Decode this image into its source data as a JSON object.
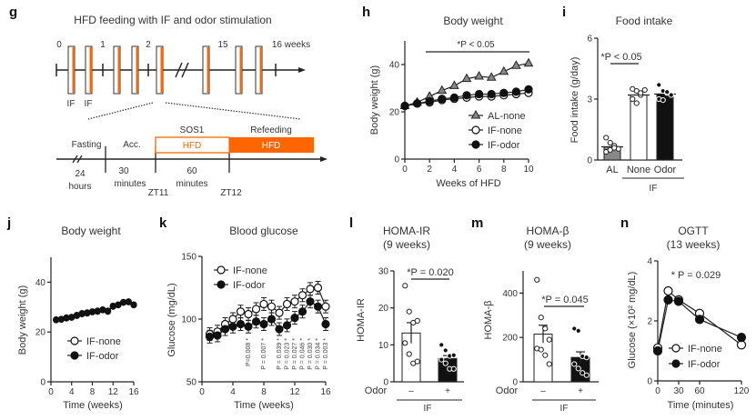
{
  "colors": {
    "accent": "#FF6600",
    "gray_marker": "#888888",
    "black": "#111111",
    "white": "#ffffff"
  },
  "panel_g": {
    "label": "g",
    "title": "HFD feeding with IF and odor stimulation",
    "week_labels": [
      "0",
      "1",
      "2",
      "15",
      "16 weeks"
    ],
    "if_labels": [
      "IF",
      "IF"
    ],
    "phases": [
      {
        "name": "Fasting",
        "duration": "24",
        "unit": "hours"
      },
      {
        "name": "Acc.",
        "duration": "30",
        "unit": "minutes"
      },
      {
        "name": "SOS1",
        "box": "HFD",
        "duration": "60",
        "unit": "minutes"
      },
      {
        "name": "Refeeding",
        "box": "HFD"
      }
    ],
    "zt_labels": [
      "ZT11",
      "ZT12"
    ]
  },
  "chart_data": [
    {
      "id": "h",
      "type": "line",
      "label": "h",
      "title": "Body weight",
      "xlabel": "Weeks of HFD",
      "ylabel": "Body weight (g)",
      "xlim": [
        0,
        10
      ],
      "ylim": [
        0,
        50
      ],
      "xticks": [
        "0",
        "2",
        "4",
        "6",
        "8",
        "10"
      ],
      "yticks": [
        "0",
        "20",
        "40"
      ],
      "annotation": "*P < 0.05",
      "x": [
        0,
        1,
        2,
        3,
        4,
        5,
        6,
        7,
        8,
        9,
        10
      ],
      "series": [
        {
          "name": "AL-none",
          "marker": "triangle-gray",
          "values": [
            22.5,
            24,
            26.5,
            29,
            31,
            34,
            35,
            34.5,
            37,
            39.5,
            40.5
          ]
        },
        {
          "name": "IF-none",
          "marker": "circle-open",
          "values": [
            22.5,
            23.5,
            24,
            25,
            25.5,
            26,
            26.5,
            26.5,
            27,
            27.5,
            28
          ]
        },
        {
          "name": "IF-odor",
          "marker": "circle-filled",
          "values": [
            22.5,
            23.5,
            24.5,
            25.5,
            26,
            27,
            27.5,
            27.5,
            28,
            28.5,
            29.5
          ]
        }
      ]
    },
    {
      "id": "i",
      "type": "bar",
      "label": "i",
      "title": "Food intake",
      "ylabel": "Food intake (g/day)",
      "ylim": [
        0,
        6
      ],
      "yticks": [
        "0",
        "3",
        "6"
      ],
      "categories": [
        "AL",
        "None",
        "Odor"
      ],
      "group_label": "IF",
      "values": [
        0.65,
        3.2,
        3.25
      ],
      "points": [
        [
          1.1,
          0.85,
          0.7,
          0.55,
          0.4,
          0.5,
          0.6
        ],
        [
          3.5,
          3.4,
          3.2,
          3.45,
          3.0,
          2.8,
          3.3
        ],
        [
          3.7,
          3.4,
          3.3,
          3.2,
          3.0,
          2.95,
          3.35
        ]
      ],
      "annotation": "*P < 0.05"
    },
    {
      "id": "j",
      "type": "line",
      "label": "j",
      "title": "Body weight",
      "xlabel": "Time (weeks)",
      "ylabel": "Body weight (g)",
      "xlim": [
        0,
        16
      ],
      "ylim": [
        0,
        50
      ],
      "xticks": [
        "0",
        "4",
        "8",
        "12",
        "16"
      ],
      "yticks": [
        "0",
        "20",
        "40"
      ],
      "x": [
        1,
        2,
        3,
        4,
        5,
        6,
        7,
        8,
        9,
        10,
        11,
        12,
        13,
        14,
        15,
        16
      ],
      "series": [
        {
          "name": "IF-none",
          "marker": "circle-open",
          "values": [
            25,
            25.2,
            25.8,
            26,
            26.8,
            27.5,
            27.8,
            28.2,
            28.5,
            29,
            28.5,
            30.5,
            31,
            32,
            32.2,
            31
          ]
        },
        {
          "name": "IF-odor",
          "marker": "circle-filled",
          "values": [
            24.8,
            25,
            25.5,
            25.8,
            26.5,
            27.2,
            27.5,
            28,
            28.2,
            28.8,
            28.2,
            30.2,
            30.8,
            31.8,
            32,
            30.8
          ]
        }
      ]
    },
    {
      "id": "k",
      "type": "line",
      "label": "k",
      "title": "Blood glucose",
      "xlabel": "Time (weeks)",
      "ylabel": "Glucose (mg/dL)",
      "xlim": [
        0,
        16
      ],
      "ylim": [
        50,
        150
      ],
      "xticks": [
        "0",
        "4",
        "8",
        "12",
        "16"
      ],
      "yticks": [
        "50",
        "100",
        "150"
      ],
      "x": [
        1,
        2,
        3,
        4,
        5,
        6,
        7,
        8,
        9,
        10,
        11,
        12,
        13,
        14,
        15,
        16
      ],
      "series": [
        {
          "name": "IF-none",
          "marker": "circle-open",
          "values": [
            88,
            90,
            96,
            100,
            106,
            104,
            108,
            112,
            110,
            105,
            112,
            114,
            119,
            124,
            125,
            110
          ]
        },
        {
          "name": "IF-odor",
          "marker": "circle-filled",
          "values": [
            86,
            87,
            92,
            94,
            96,
            94,
            98,
            96,
            100,
            92,
            95,
            101,
            106,
            114,
            110,
            96
          ]
        }
      ],
      "pvalues": [
        {
          "x": 6,
          "text": "P=0.008 *"
        },
        {
          "x": 8,
          "text": "P = 0.007 *"
        },
        {
          "x": 10,
          "text": "P = 0.039 *"
        },
        {
          "x": 11,
          "text": "P = 0.023 *"
        },
        {
          "x": 12,
          "text": "P = 0.027 *"
        },
        {
          "x": 13,
          "text": "P = 0.046 *"
        },
        {
          "x": 14,
          "text": "P = 0.030 *"
        },
        {
          "x": 15,
          "text": "P = 0.034 *"
        },
        {
          "x": 16,
          "text": "P = 0.003 *"
        }
      ]
    },
    {
      "id": "l",
      "type": "bar",
      "label": "l",
      "title": "HOMA-IR",
      "subtitle": "(9 weeks)",
      "ylabel": "HOMA-IR",
      "ylim": [
        0,
        30
      ],
      "yticks": [
        "0",
        "10",
        "20",
        "30"
      ],
      "categories": [
        "–",
        "+"
      ],
      "row_label": "Odor",
      "group_label": "IF",
      "values": [
        13.2,
        6.3
      ],
      "errors": [
        2.8,
        0.8
      ],
      "points": [
        [
          26,
          19,
          16,
          16.5,
          10.5,
          7.5,
          5,
          5.5
        ],
        [
          10,
          8.5,
          7,
          7.2,
          6,
          5,
          3.5,
          3.5
        ]
      ],
      "annotation": "*P = 0.020"
    },
    {
      "id": "m",
      "type": "bar",
      "label": "m",
      "title": "HOMA-β",
      "subtitle": "(9 weeks)",
      "ylabel": "HOMA-β",
      "ylim": [
        0,
        500
      ],
      "yticks": [
        "0",
        "200",
        "400"
      ],
      "categories": [
        "–",
        "+"
      ],
      "row_label": "Odor",
      "group_label": "IF",
      "values": [
        215,
        110
      ],
      "errors": [
        40,
        25
      ],
      "points": [
        [
          460,
          290,
          240,
          190,
          150,
          145,
          120,
          80
        ],
        [
          240,
          230,
          115,
          110,
          80,
          60,
          40,
          30
        ]
      ],
      "annotation": "*P = 0.045"
    },
    {
      "id": "n",
      "type": "line",
      "label": "n",
      "title": "OGTT",
      "subtitle": "(13 weeks)",
      "xlabel": "Time (minutes)",
      "ylabel": "Glucose (×10² mg/dL)",
      "xlim": [
        0,
        120
      ],
      "ylim": [
        0,
        4
      ],
      "xticks": [
        "0",
        "30",
        "60",
        "120"
      ],
      "yticks": [
        "0",
        "2",
        "4"
      ],
      "x": [
        0,
        15,
        30,
        60,
        120
      ],
      "series": [
        {
          "name": "IF-none",
          "marker": "circle-open",
          "values": [
            1.1,
            3.0,
            2.7,
            2.25,
            1.2
          ]
        },
        {
          "name": "IF-odor",
          "marker": "circle-filled",
          "values": [
            1.0,
            2.7,
            2.65,
            2.05,
            1.45
          ]
        }
      ],
      "annotation": "* P = 0.029"
    }
  ]
}
